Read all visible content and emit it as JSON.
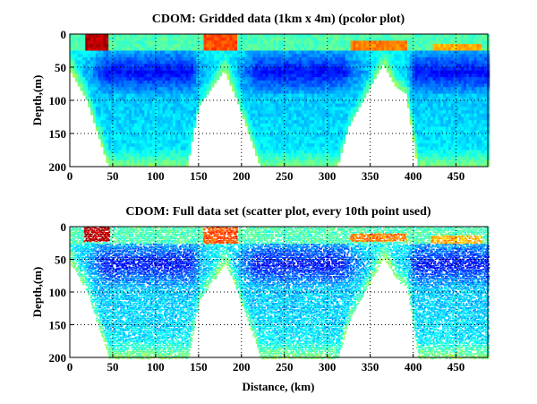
{
  "chart_data": [
    {
      "type": "heatmap",
      "title": "CDOM: Gridded data (1km x 4m) (pcolor plot)",
      "xlabel": "",
      "ylabel": "Depth,(m)",
      "xlim": [
        0,
        487
      ],
      "ylim": [
        200,
        0
      ],
      "xticks": [
        0,
        50,
        100,
        150,
        200,
        250,
        300,
        350,
        400,
        450
      ],
      "yticks": [
        0,
        50,
        100,
        150,
        200
      ],
      "grid": true,
      "colormap": "jet",
      "style": "pcolor"
    },
    {
      "type": "scatter",
      "title": "CDOM: Full data set (scatter plot, every 10th point used)",
      "xlabel": "Distance, (km)",
      "ylabel": "Depth,(m)",
      "xlim": [
        0,
        487
      ],
      "ylim": [
        200,
        0
      ],
      "xticks": [
        0,
        50,
        100,
        150,
        200,
        250,
        300,
        350,
        400,
        450
      ],
      "yticks": [
        0,
        50,
        100,
        150,
        200
      ],
      "grid": true,
      "colormap": "jet",
      "style": "scatter"
    }
  ]
}
